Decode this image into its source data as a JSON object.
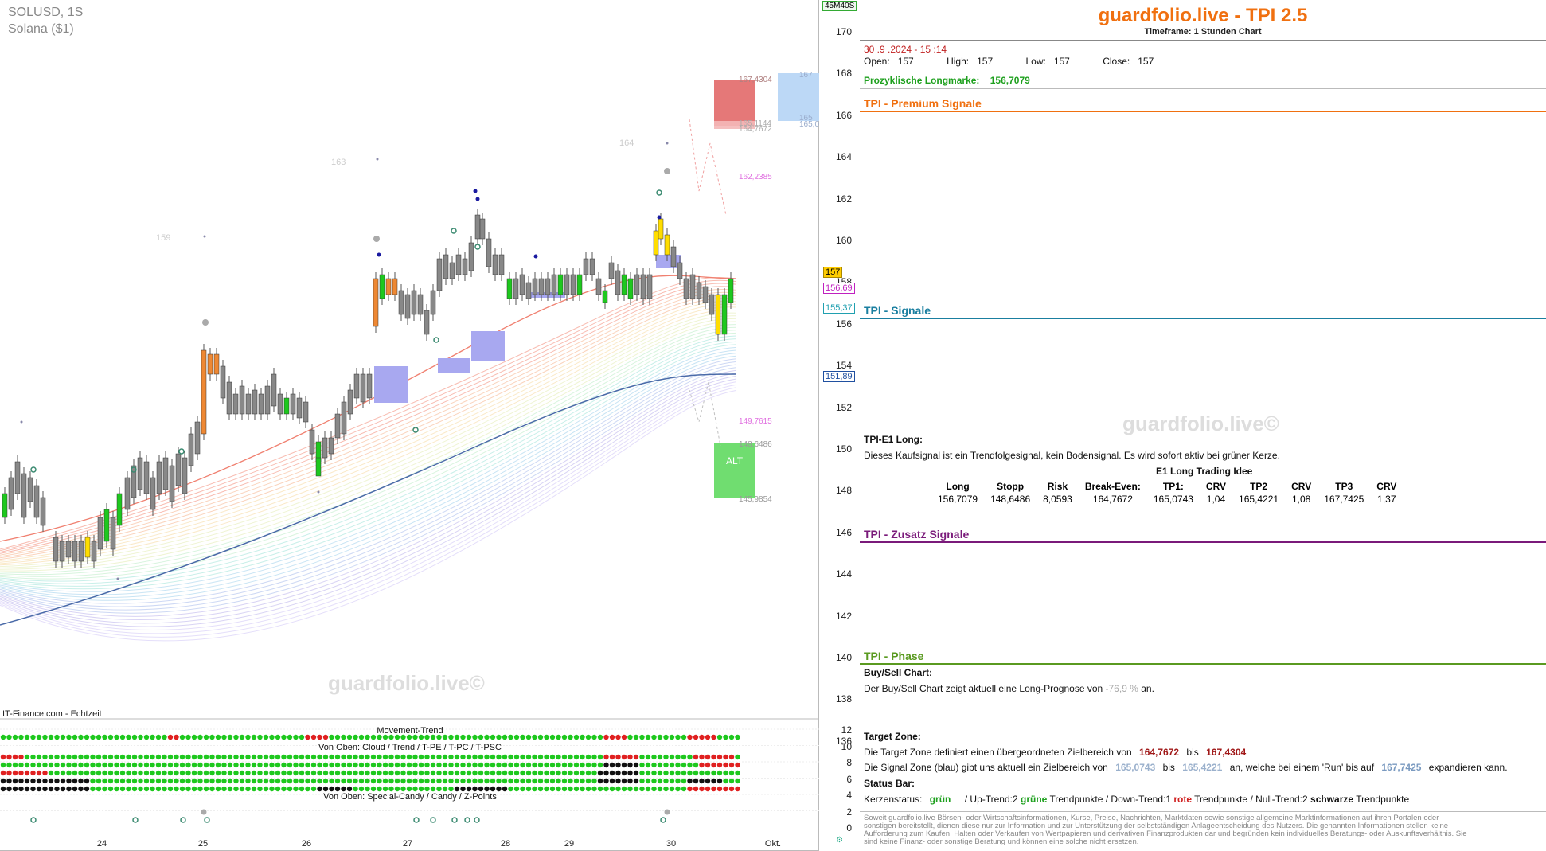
{
  "chart": {
    "symbol": "SOLUSD, 1S",
    "name": "Solana ($1)",
    "timer": "45M40S",
    "source": "IT-Finance.com - Echtzeit",
    "watermark": "guardfolio.live©",
    "y_ticks": [
      "170",
      "168",
      "166",
      "164",
      "162",
      "160",
      "158",
      "156",
      "154",
      "152",
      "150",
      "148",
      "146",
      "144",
      "142",
      "140",
      "138",
      "136"
    ],
    "x_labels": [
      "24",
      "25",
      "26",
      "27",
      "28",
      "29",
      "30",
      "Okt."
    ],
    "price_labels": {
      "current": "157",
      "l1": "156,69",
      "l2": "155,37",
      "l3": "151,89",
      "chart_152": "152"
    },
    "annotations": {
      "a1": "167,4304",
      "a2": "167",
      "a3": "165,1144",
      "a4": "164,7672",
      "a5": "165",
      "a6": "165,0",
      "a7": "162,2385",
      "a8": "149,7615",
      "a9": "148,6486",
      "a10": "145,9854",
      "alt": "ALT",
      "t159": "159",
      "t163": "163",
      "t164": "164"
    },
    "sub_panel": {
      "movement_trend": "Movement-Trend",
      "cloud_label": "Von Oben: Cloud / Trend / T-PE / T-PC / T-PSC",
      "special_label": "Von Oben: Special-Candy / Candy / Z-Points",
      "ticks": [
        "12",
        "10",
        "8",
        "6",
        "4",
        "2",
        "0"
      ]
    }
  },
  "panel": {
    "title": "guardfolio.live - TPI 2.5",
    "timeframe": "Timeframe: 1 Stunden Chart",
    "datetime": "30 .9 .2024 - 15 :14",
    "open_label": "Open:",
    "open": "157",
    "high_label": "High:",
    "high": "157",
    "low_label": "Low:",
    "low": "157",
    "close_label": "Close:",
    "close": "157",
    "longmark_label": "Prozyklische Longmarke:",
    "longmark": "156,7079",
    "sections": {
      "premium": "TPI - Premium Signale",
      "signale": "TPI - Signale",
      "zusatz": "TPI - Zusatz Signale",
      "phase": "TPI - Phase"
    },
    "e1": {
      "heading": "TPI-E1 Long:",
      "text": "Dieses Kaufsignal ist ein Trendfolgesignal, kein Bodensignal. Es wird sofort aktiv bei grüner Kerze.",
      "idea_title": "E1 Long Trading Idee",
      "headers": [
        "Long",
        "Stopp",
        "Risk",
        "Break-Even:",
        "TP1:",
        "CRV",
        "TP2",
        "CRV",
        "TP3",
        "CRV"
      ],
      "values": [
        "156,7079",
        "148,6486",
        "8,0593",
        "164,7672",
        "165,0743",
        "1,04",
        "165,4221",
        "1,08",
        "167,7425",
        "1,37"
      ]
    },
    "buysell": {
      "heading": "Buy/Sell Chart:",
      "text_a": "Der Buy/Sell Chart zeigt aktuell eine Long-Prognose von",
      "value": "-76,9 %",
      "text_b": "an."
    },
    "target": {
      "heading": "Target Zone:",
      "t1a": "Die Target Zone definiert einen übergeordneten Zielbereich von",
      "t1v1": "164,7672",
      "t1b": "bis",
      "t1v2": "167,4304",
      "t2a": "Die Signal Zone (blau) gibt uns aktuell ein Zielbereich von",
      "t2v1": "165,0743",
      "t2b": "bis",
      "t2v2": "165,4221",
      "t2c": "an, welche bei einem 'Run' bis auf",
      "t2v3": "167,7425",
      "t2d": "expandieren kann."
    },
    "status": {
      "heading": "Status Bar:",
      "k_label": "Kerzenstatus:",
      "k_value": "grün",
      "up": "/ Up-Trend:2",
      "up_word": "grüne",
      "up_tail": "Trendpunkte",
      "down": "/ Down-Trend:1",
      "down_word": "rote",
      "down_tail": "Trendpunkte",
      "null": "/ Null-Trend:2",
      "null_word": "schwarze",
      "null_tail": "Trendpunkte"
    },
    "watermark": "guardfolio.live©",
    "disclaimer": "Soweit guardfolio.live Börsen- oder Wirtschaftsinformationen, Kurse, Preise, Nachrichten, Marktdaten sowie sonstige allgemeine Marktinformationen auf ihren Portalen oder sonstigen bereitstellt, dienen diese nur zur Information und zur Unterstützung der selbstständigen Anlageentscheidung des Nutzers. Die genannten Informationen stellen keine Aufforderung zum Kaufen, Halten oder Verkaufen von Wertpapieren und derivativen Finanzprodukten dar und begründen kein individuelles Beratungs- oder Auskunftsverhältnis. Sie sind keine Finanz- oder sonstige Beratung und können eine solche nicht ersetzen."
  },
  "colors": {
    "orange": "#f07010",
    "teal": "#1a7fa0",
    "purple": "#7a1a7a",
    "phase_green": "#5a9a20",
    "green": "#1ec81e",
    "red": "#e03030",
    "blue_text": "#7a9ac0"
  }
}
